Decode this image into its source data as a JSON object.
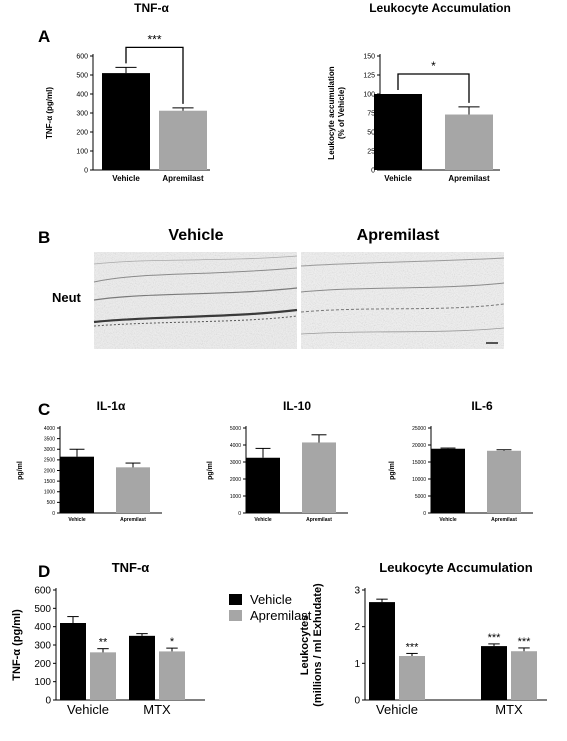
{
  "panel_letters": [
    "A",
    "B",
    "C",
    "D"
  ],
  "colors": {
    "vehicle": "#000000",
    "apremilast": "#a6a6a6",
    "axis": "#000000"
  },
  "panel_b": {
    "col_labels": [
      "Vehicle",
      "Apremilast"
    ],
    "row_label": "Neut"
  },
  "legend": {
    "entries": [
      "Vehicle",
      "Apremilast"
    ]
  },
  "chart_data": [
    {
      "id": "A1",
      "type": "bar",
      "title": "TNF-α",
      "ylabel": "TNF-α (pg/ml)",
      "xlabel": "",
      "ylim": [
        0,
        600
      ],
      "yticks": [
        0,
        100,
        200,
        300,
        400,
        500,
        600
      ],
      "categories": [
        "Vehicle",
        "Apremilast"
      ],
      "values": [
        510,
        312
      ],
      "errors": [
        30,
        15
      ],
      "bar_colors": [
        "#000000",
        "#a6a6a6"
      ],
      "significance": {
        "label": "***",
        "between": [
          0,
          1
        ]
      }
    },
    {
      "id": "A2",
      "type": "bar",
      "title": "Leukocyte Accumulation",
      "ylabel": [
        "Leukocyte accumulation",
        "(% of Vehicle)"
      ],
      "xlabel": "",
      "ylim": [
        0,
        150
      ],
      "yticks": [
        0,
        25,
        50,
        75,
        100,
        125,
        150
      ],
      "categories": [
        "Vehicle",
        "Apremilast"
      ],
      "values": [
        100,
        73
      ],
      "errors": [
        0,
        10
      ],
      "bar_colors": [
        "#000000",
        "#a6a6a6"
      ],
      "significance": {
        "label": "*",
        "between": [
          0,
          1
        ]
      }
    },
    {
      "id": "C1",
      "type": "bar",
      "title": "IL-1α",
      "ylabel": "pg/ml",
      "xlabel": "",
      "ylim": [
        0,
        4000
      ],
      "yticks": [
        0,
        500,
        1000,
        1500,
        2000,
        2500,
        3000,
        3500,
        4000
      ],
      "categories": [
        "Vehicle",
        "Apremilast"
      ],
      "values": [
        2650,
        2150
      ],
      "errors": [
        350,
        200
      ],
      "bar_colors": [
        "#000000",
        "#a6a6a6"
      ]
    },
    {
      "id": "C2",
      "type": "bar",
      "title": "IL-10",
      "ylabel": "pg/ml",
      "xlabel": "",
      "ylim": [
        0,
        5000
      ],
      "yticks": [
        0,
        1000,
        2000,
        3000,
        4000,
        5000
      ],
      "categories": [
        "Vehicle",
        "Apremilast"
      ],
      "values": [
        3250,
        4150
      ],
      "errors": [
        550,
        450
      ],
      "bar_colors": [
        "#000000",
        "#a6a6a6"
      ]
    },
    {
      "id": "C3",
      "type": "bar",
      "title": "IL-6",
      "ylabel": "pg/ml",
      "xlabel": "",
      "ylim": [
        0,
        25000
      ],
      "yticks": [
        0,
        5000,
        10000,
        15000,
        20000,
        25000
      ],
      "categories": [
        "Vehicle",
        "Apremilast"
      ],
      "values": [
        18900,
        18300
      ],
      "errors": [
        200,
        300
      ],
      "bar_colors": [
        "#000000",
        "#a6a6a6"
      ]
    },
    {
      "id": "D1",
      "type": "bar",
      "title": "TNF-α",
      "ylabel": "TNF-α (pg/ml)",
      "xlabel": "",
      "ylim": [
        0,
        600
      ],
      "yticks": [
        0,
        100,
        200,
        300,
        400,
        500,
        600
      ],
      "categories": [
        "Vehicle",
        "MTX"
      ],
      "series": [
        {
          "name": "Vehicle",
          "color": "#000000",
          "values": [
            420,
            350
          ],
          "errors": [
            35,
            12
          ],
          "sig": [
            "",
            ""
          ]
        },
        {
          "name": "Apremilast",
          "color": "#a6a6a6",
          "values": [
            260,
            265
          ],
          "errors": [
            20,
            18
          ],
          "sig": [
            "**",
            "*"
          ]
        }
      ]
    },
    {
      "id": "D2",
      "type": "bar",
      "title": "Leukocyte Accumulation",
      "ylabel": [
        "Leukocytes",
        "(millions / ml Exhudate)"
      ],
      "xlabel": "",
      "ylim": [
        0,
        3
      ],
      "yticks": [
        0,
        1,
        2,
        3
      ],
      "categories": [
        "Vehicle",
        "MTX"
      ],
      "series": [
        {
          "name": "Vehicle",
          "color": "#000000",
          "values": [
            2.67,
            1.47
          ],
          "errors": [
            0.08,
            0.06
          ],
          "sig": [
            "",
            "***"
          ]
        },
        {
          "name": "Apremilast",
          "color": "#a6a6a6",
          "values": [
            1.2,
            1.33
          ],
          "errors": [
            0.07,
            0.09
          ],
          "sig": [
            "***",
            "***"
          ]
        }
      ]
    }
  ]
}
